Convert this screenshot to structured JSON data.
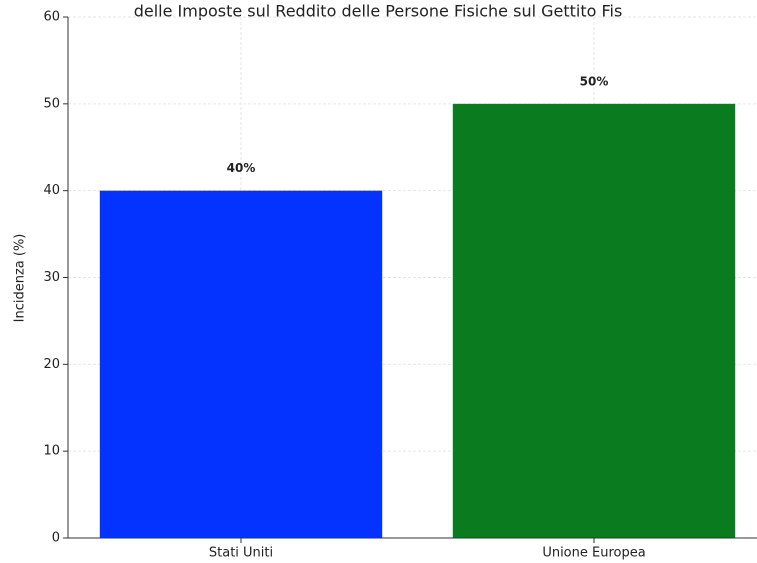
{
  "chart_data": {
    "type": "bar",
    "title": "delle Imposte sul Reddito delle Persone Fisiche sul Gettito Fis",
    "ylabel": "Incidenza (%)",
    "categories": [
      "Stati Uniti",
      "Unione Europea"
    ],
    "values": [
      40,
      50
    ],
    "value_labels": [
      "40%",
      "50%"
    ],
    "colors": [
      "#0433ff",
      "#0a7b1f"
    ],
    "ylim": [
      0,
      60
    ],
    "yticks": [
      0,
      10,
      20,
      30,
      40,
      50,
      60
    ],
    "grid": true
  }
}
